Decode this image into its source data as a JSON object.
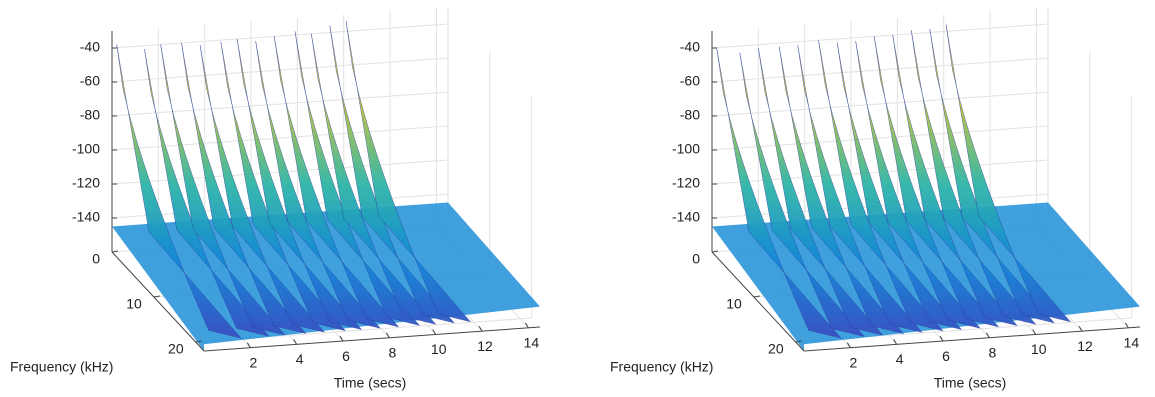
{
  "chart_data": [
    {
      "type": "waterfall",
      "xlabel": "Time (secs)",
      "ylabel": "Frequency (kHz)",
      "x": [
        0.2,
        1.4,
        2.1,
        3.0,
        3.8,
        4.7,
        5.4,
        6.2,
        7.0,
        7.9,
        8.6,
        9.4,
        10.1
      ],
      "values": [
        -38,
        -42,
        -40,
        -40,
        -42,
        -41,
        -40,
        -42,
        -40,
        -38,
        -40,
        -36,
        -34
      ],
      "xlim": [
        0,
        14.5
      ],
      "xticks": [
        2,
        4,
        6,
        8,
        10,
        12,
        14
      ],
      "ylim": [
        0,
        22
      ],
      "yticks": [
        0,
        10,
        20
      ],
      "zlim": [
        -160,
        -30
      ],
      "zticks": [
        -40,
        -60,
        -80,
        -100,
        -120,
        -140
      ],
      "grid": true
    },
    {
      "type": "waterfall",
      "xlabel": "Time (secs)",
      "ylabel": "Frequency (kHz)",
      "x": [
        0.2,
        1.2,
        2.0,
        2.9,
        3.7,
        4.6,
        5.4,
        6.2,
        7.0,
        7.8,
        8.6,
        9.4,
        10.1
      ],
      "values": [
        -40,
        -44,
        -42,
        -42,
        -42,
        -40,
        -42,
        -42,
        -40,
        -40,
        -38,
        -38,
        -36
      ],
      "xlim": [
        0,
        14.5
      ],
      "xticks": [
        2,
        4,
        6,
        8,
        10,
        12,
        14
      ],
      "ylim": [
        0,
        22
      ],
      "yticks": [
        0,
        10,
        20
      ],
      "zlim": [
        -160,
        -30
      ],
      "zticks": [
        -40,
        -60,
        -80,
        -100,
        -120,
        -140
      ],
      "grid": true
    }
  ]
}
